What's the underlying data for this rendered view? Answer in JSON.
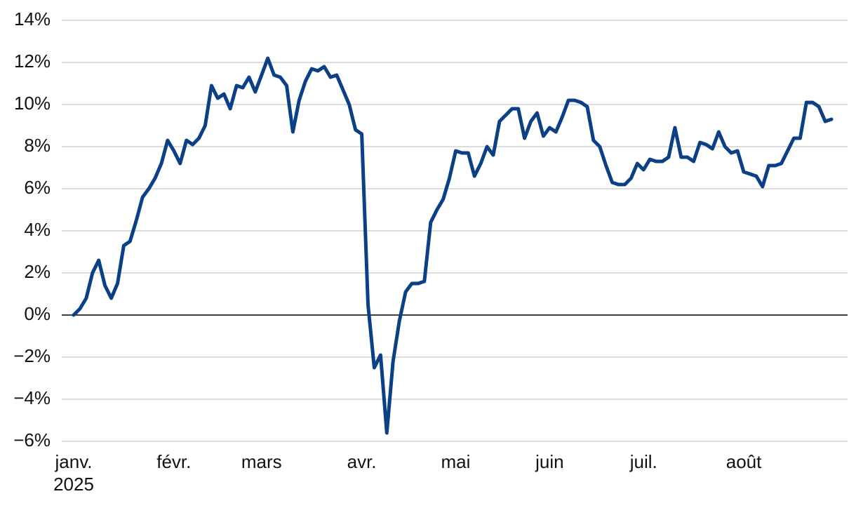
{
  "chart_data": {
    "type": "line",
    "categories": [
      "janv.",
      null,
      null,
      null,
      null,
      null,
      null,
      null,
      null,
      null,
      null,
      null,
      null,
      null,
      null,
      null,
      "févr.",
      null,
      null,
      null,
      null,
      null,
      null,
      null,
      null,
      null,
      null,
      null,
      null,
      null,
      "mars",
      null,
      null,
      null,
      null,
      null,
      null,
      null,
      null,
      null,
      null,
      null,
      null,
      null,
      null,
      null,
      "avr.",
      null,
      null,
      null,
      null,
      null,
      null,
      null,
      null,
      null,
      null,
      null,
      null,
      null,
      null,
      "mai",
      null,
      null,
      null,
      null,
      null,
      null,
      null,
      null,
      null,
      null,
      null,
      null,
      null,
      null,
      "juin",
      null,
      null,
      null,
      null,
      null,
      null,
      null,
      null,
      null,
      null,
      null,
      null,
      null,
      null,
      "juil.",
      null,
      null,
      null,
      null,
      null,
      null,
      null,
      null,
      null,
      null,
      null,
      null,
      null,
      null,
      null,
      "août",
      null,
      null,
      null,
      null,
      null,
      null,
      null,
      null,
      null,
      null,
      null,
      null,
      null,
      null
    ],
    "year": "2025",
    "series": [
      {
        "color": "#0b3f86",
        "values": [
          0,
          0.3,
          0.8,
          2.0,
          2.6,
          1.4,
          0.8,
          1.5,
          3.3,
          3.5,
          4.5,
          5.6,
          6.0,
          6.5,
          7.2,
          8.3,
          7.8,
          7.2,
          8.3,
          8.1,
          8.4,
          9.0,
          10.9,
          10.3,
          10.5,
          9.8,
          10.9,
          10.8,
          11.3,
          10.6,
          11.4,
          12.2,
          11.4,
          11.3,
          10.9,
          8.7,
          10.2,
          11.1,
          11.7,
          11.6,
          11.8,
          11.3,
          11.4,
          10.7,
          10.0,
          8.8,
          8.6,
          0.5,
          -2.5,
          -1.9,
          -5.6,
          -2.2,
          -0.3,
          1.1,
          1.5,
          1.5,
          1.6,
          4.4,
          5.0,
          5.5,
          6.5,
          7.8,
          7.7,
          7.7,
          6.6,
          7.2,
          8.0,
          7.6,
          9.2,
          9.5,
          9.8,
          9.8,
          8.4,
          9.2,
          9.6,
          8.5,
          8.9,
          8.7,
          9.4,
          10.2,
          10.2,
          10.1,
          9.9,
          8.3,
          8.0,
          7.1,
          6.3,
          6.2,
          6.2,
          6.5,
          7.2,
          6.9,
          7.4,
          7.3,
          7.3,
          7.5,
          8.9,
          7.5,
          7.5,
          7.3,
          8.2,
          8.1,
          7.9,
          8.7,
          8.0,
          7.7,
          7.8,
          6.8,
          6.7,
          6.6,
          6.1,
          7.1,
          7.1,
          7.2,
          7.8,
          8.4,
          8.4,
          10.1,
          10.1,
          9.9,
          9.2,
          9.3
        ]
      }
    ],
    "ylim": [
      -6,
      14
    ],
    "yticks": [
      {
        "value": -6,
        "label": "−6%"
      },
      {
        "value": -4,
        "label": "−4%"
      },
      {
        "value": -2,
        "label": "−2%"
      },
      {
        "value": 0,
        "label": "0%"
      },
      {
        "value": 2,
        "label": "2%"
      },
      {
        "value": 4,
        "label": "4%"
      },
      {
        "value": 6,
        "label": "6%"
      },
      {
        "value": 8,
        "label": "8%"
      },
      {
        "value": 10,
        "label": "10%"
      },
      {
        "value": 12,
        "label": "12%"
      },
      {
        "value": 14,
        "label": "14%"
      }
    ],
    "grid": true,
    "zero_line": true
  }
}
